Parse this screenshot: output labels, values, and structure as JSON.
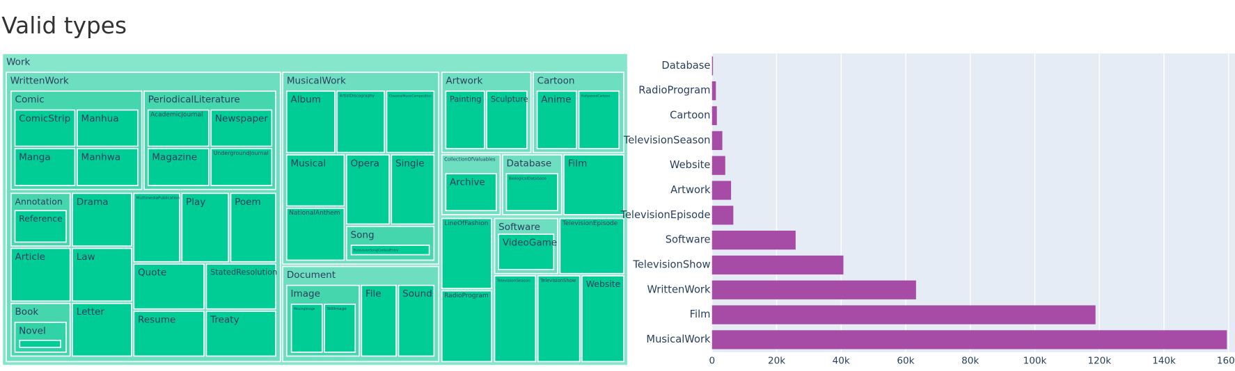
{
  "title": "Valid types",
  "chart_data": [
    {
      "type": "treemap",
      "labels": [
        "Work",
        "WrittenWork",
        "MusicalWork",
        "Artwork",
        "Cartoon",
        "Document",
        "CollectionOfValuables",
        "Database",
        "Film",
        "LineOfFashion",
        "Software",
        "TelevisionEpisode",
        "RadioProgram",
        "TelevisionSeason",
        "TelevisionShow",
        "Website",
        "Comic",
        "PeriodicalLiterature",
        "Annotation",
        "Drama",
        "MultimediaPublication",
        "Play",
        "Poem",
        "Article",
        "Law",
        "Quote",
        "StatedResolution",
        "Book",
        "Letter",
        "Resume",
        "Treaty",
        "ComicStrip",
        "Manhua",
        "Manga",
        "Manhwa",
        "AcademicJournal",
        "Newspaper",
        "Magazine",
        "UndergroundJournal",
        "Reference",
        "Novel",
        "Album",
        "ArtistDiscography",
        "ClassicalMusicComposition",
        "Musical",
        "NationalAnthem",
        "Opera",
        "Single",
        "Song",
        "EurovisionSongContestEntry",
        "Painting",
        "Sculpture",
        "Anime",
        "HollywoodCartoon",
        "Image",
        "File",
        "Sound",
        "MovingImage",
        "StillImage",
        "Archive",
        "BiologicalDatabase",
        "VideoGame"
      ]
    },
    {
      "type": "bar",
      "orientation": "h",
      "categories": [
        "Database",
        "RadioProgram",
        "Cartoon",
        "TelevisionSeason",
        "Website",
        "Artwork",
        "TelevisionEpisode",
        "Software",
        "TelevisionShow",
        "WrittenWork",
        "Film",
        "MusicalWork"
      ],
      "values": [
        300,
        1200,
        1500,
        3200,
        4100,
        5900,
        6600,
        25900,
        40700,
        63200,
        118800,
        159500
      ],
      "color": "#a64ca6",
      "xlim": [
        0,
        162000
      ],
      "xticks": [
        {
          "value": 0,
          "label": "0"
        },
        {
          "value": 20000,
          "label": "20k"
        },
        {
          "value": 40000,
          "label": "40k"
        },
        {
          "value": 60000,
          "label": "60k"
        },
        {
          "value": 80000,
          "label": "80k"
        },
        {
          "value": 100000,
          "label": "100k"
        },
        {
          "value": 120000,
          "label": "120k"
        },
        {
          "value": 140000,
          "label": "140k"
        },
        {
          "value": 160000,
          "label": "160k"
        }
      ],
      "grid": true
    }
  ]
}
